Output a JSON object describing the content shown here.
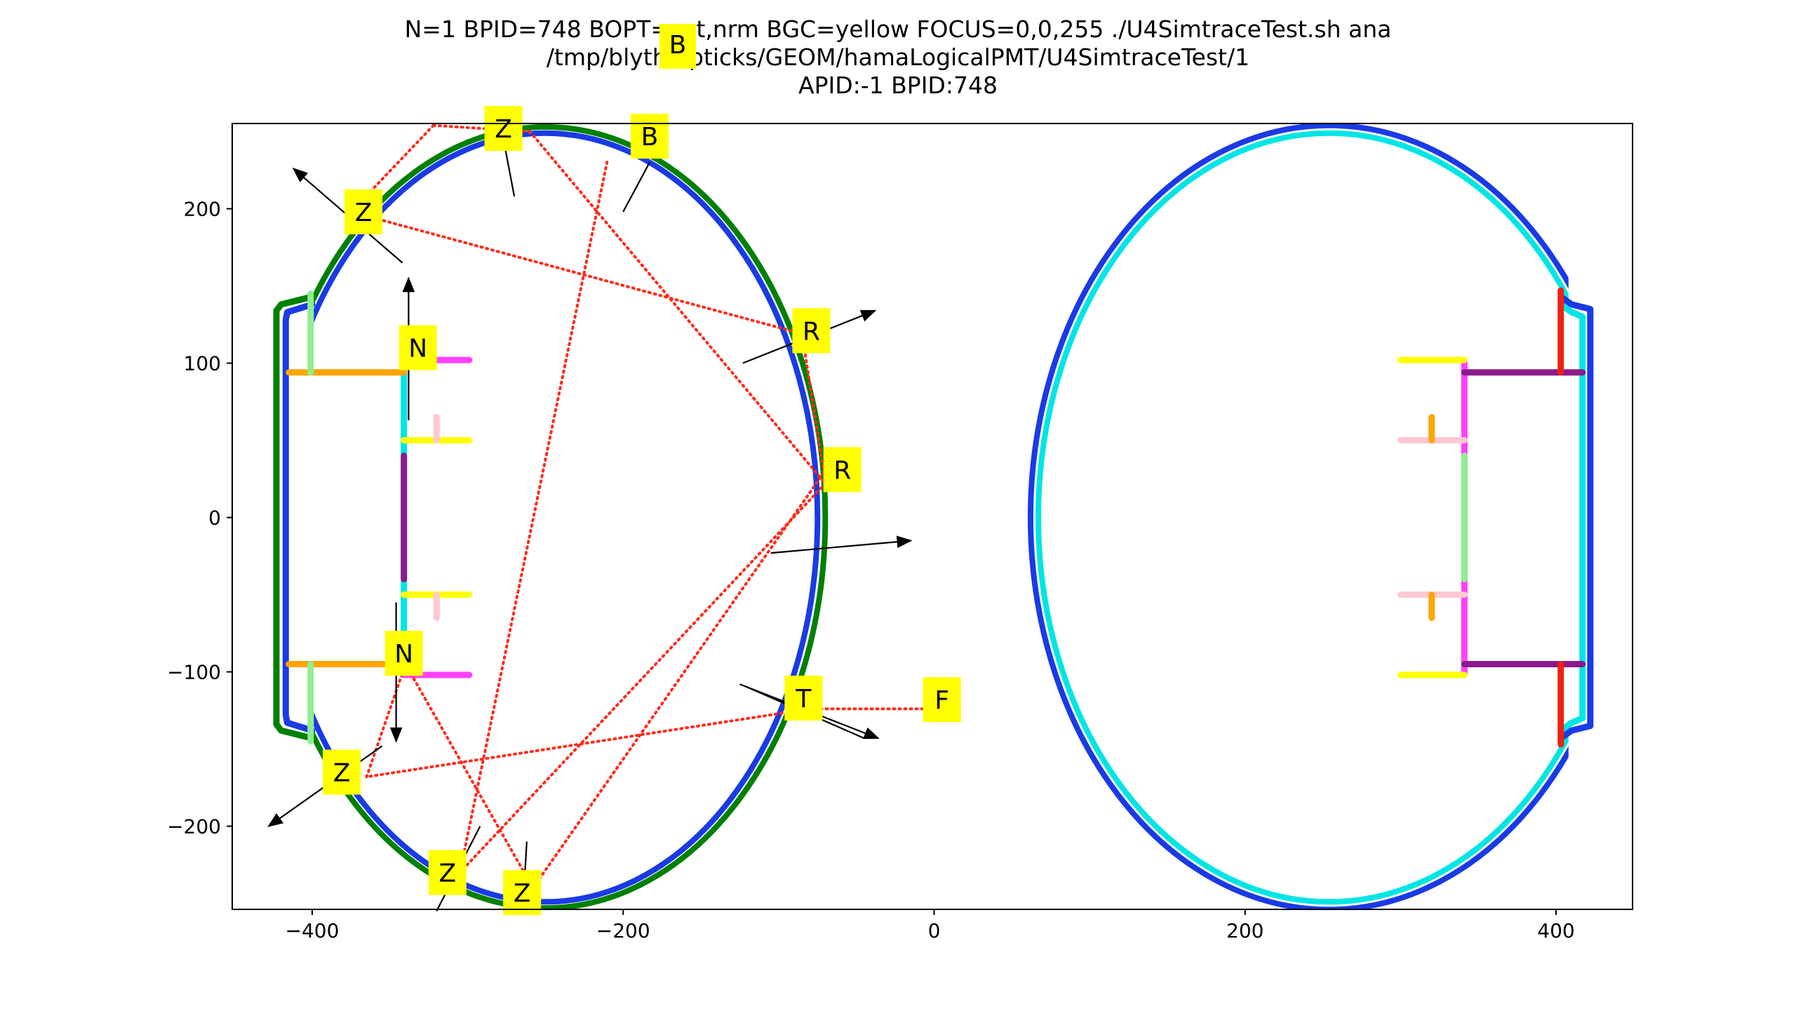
{
  "title": {
    "line1": "N=1 BPID=748 BOPT=ast,nrm BGC=yellow FOCUS=0,0,255 ./U4SimtraceTest.sh ana",
    "line2": "/tmp/blyth/opticks/GEOM/hamaLogicalPMT/U4SimtraceTest/1",
    "line3": "APID:-1 BPID:748",
    "overlay_label": "B"
  },
  "colors": {
    "green": "#008000",
    "blue": "#1a3ae6",
    "cyan": "#00e5e5",
    "magenta": "#ff40ff",
    "purple": "#8c1a8c",
    "orange": "#ffa500",
    "yellow": "#ffff00",
    "pink": "#ffc8d2",
    "lightgreen": "#90ee90",
    "red": "#ee2211",
    "ray": "#ff2a1a",
    "label_bg": "#ffff00",
    "arrow": "#000000"
  },
  "chart_data": {
    "type": "scatter",
    "xlim": [
      -460,
      455
    ],
    "ylim": [
      -255,
      255
    ],
    "grid": false,
    "xticks": [
      -400,
      -200,
      0,
      200,
      400
    ],
    "yticks": [
      -200,
      -100,
      0,
      100,
      200
    ],
    "xtick_labels": [
      "−400",
      "−200",
      "0",
      "200",
      "400"
    ],
    "ytick_labels": [
      "−200",
      "−100",
      "0",
      "100",
      "200"
    ],
    "geometry": {
      "ellipses": [
        {
          "name": "left-outer",
          "cx": -250,
          "cy": 0,
          "rx": 180,
          "ry": 253,
          "color": "green",
          "clip_xmin": -400
        },
        {
          "name": "left-inner",
          "cx": -250,
          "cy": 0,
          "rx": 175,
          "ry": 249,
          "color": "blue",
          "clip_xmin": -400
        },
        {
          "name": "right-outer",
          "cx": 254,
          "cy": 0,
          "rx": 192,
          "ry": 254,
          "color": "blue",
          "clip_xmax": 408
        },
        {
          "name": "right-inner",
          "cx": 254,
          "cy": 0,
          "rx": 187,
          "ry": 249,
          "color": "cyan",
          "clip_xmax": 408
        }
      ],
      "polylines": [
        {
          "name": "left-neck-outer",
          "color": "green",
          "points": [
            [
              -400,
              143
            ],
            [
              -420,
              138
            ],
            [
              -423,
              134
            ],
            [
              -423,
              -134
            ],
            [
              -420,
              -138
            ],
            [
              -400,
              -143
            ]
          ]
        },
        {
          "name": "left-neck-inner",
          "color": "blue",
          "points": [
            [
              -400,
              138
            ],
            [
              -416,
              133
            ],
            [
              -417,
              128
            ],
            [
              -417,
              -128
            ],
            [
              -416,
              -133
            ],
            [
              -400,
              -138
            ]
          ]
        },
        {
          "name": "right-neck-outer",
          "color": "blue",
          "points": [
            [
              403,
              143
            ],
            [
              410,
              138
            ],
            [
              422,
              135
            ],
            [
              422,
              -135
            ],
            [
              410,
              -138
            ],
            [
              403,
              -143
            ]
          ]
        },
        {
          "name": "right-neck-inner",
          "color": "cyan",
          "points": [
            [
              403,
              138
            ],
            [
              410,
              133
            ],
            [
              417,
              130
            ],
            [
              417,
              -130
            ],
            [
              410,
              -133
            ],
            [
              403,
              -138
            ]
          ]
        },
        {
          "name": "left-div-cyan",
          "color": "cyan",
          "points": [
            [
              -341,
              102
            ],
            [
              -341,
              -102
            ]
          ]
        },
        {
          "name": "left-div-purple",
          "color": "purple",
          "points": [
            [
              -341,
              40
            ],
            [
              -341,
              -40
            ]
          ]
        },
        {
          "name": "left-upper-mag",
          "color": "magenta",
          "points": [
            [
              -341,
              102
            ],
            [
              -299,
              102
            ]
          ]
        },
        {
          "name": "left-lower-mag",
          "color": "magenta",
          "points": [
            [
              -341,
              -102
            ],
            [
              -299,
              -102
            ]
          ]
        },
        {
          "name": "left-upper-yel",
          "color": "yellow",
          "points": [
            [
              -341,
              50
            ],
            [
              -299,
              50
            ]
          ]
        },
        {
          "name": "left-lower-yel",
          "color": "yellow",
          "points": [
            [
              -341,
              -50
            ],
            [
              -299,
              -50
            ]
          ]
        },
        {
          "name": "left-upper-pink",
          "color": "pink",
          "points": [
            [
              -320,
              65
            ],
            [
              -320,
              50
            ]
          ]
        },
        {
          "name": "left-lower-pink",
          "color": "pink",
          "points": [
            [
              -320,
              -50
            ],
            [
              -320,
              -65
            ]
          ]
        },
        {
          "name": "left-upper-orange",
          "color": "orange",
          "points": [
            [
              -415,
              94
            ],
            [
              -341,
              94
            ]
          ]
        },
        {
          "name": "left-lower-orange",
          "color": "orange",
          "points": [
            [
              -415,
              -95
            ],
            [
              -341,
              -95
            ]
          ]
        },
        {
          "name": "left-upper-lg",
          "color": "lightgreen",
          "points": [
            [
              -401,
              145
            ],
            [
              -401,
              94
            ]
          ]
        },
        {
          "name": "left-lower-lg",
          "color": "lightgreen",
          "points": [
            [
              -401,
              -95
            ],
            [
              -401,
              -145
            ]
          ]
        },
        {
          "name": "right-div-mag",
          "color": "magenta",
          "points": [
            [
              341,
              102
            ],
            [
              341,
              -102
            ]
          ]
        },
        {
          "name": "right-div-lg",
          "color": "lightgreen",
          "points": [
            [
              341,
              40
            ],
            [
              341,
              -40
            ]
          ]
        },
        {
          "name": "right-upper-yel",
          "color": "yellow",
          "points": [
            [
              300,
              102
            ],
            [
              341,
              102
            ]
          ]
        },
        {
          "name": "right-lower-yel",
          "color": "yellow",
          "points": [
            [
              300,
              -102
            ],
            [
              341,
              -102
            ]
          ]
        },
        {
          "name": "right-upper-pink",
          "color": "pink",
          "points": [
            [
              300,
              50
            ],
            [
              341,
              50
            ]
          ]
        },
        {
          "name": "right-lower-pink",
          "color": "pink",
          "points": [
            [
              300,
              -50
            ],
            [
              341,
              -50
            ]
          ]
        },
        {
          "name": "right-upper-orange",
          "color": "orange",
          "points": [
            [
              320,
              65
            ],
            [
              320,
              50
            ]
          ]
        },
        {
          "name": "right-lower-orange",
          "color": "orange",
          "points": [
            [
              320,
              -50
            ],
            [
              320,
              -65
            ]
          ]
        },
        {
          "name": "right-upper-purple",
          "color": "purple",
          "points": [
            [
              341,
              94
            ],
            [
              417,
              94
            ]
          ]
        },
        {
          "name": "right-lower-purple",
          "color": "purple",
          "points": [
            [
              341,
              -95
            ],
            [
              417,
              -95
            ]
          ]
        },
        {
          "name": "right-upper-red",
          "color": "red",
          "points": [
            [
              403,
              147
            ],
            [
              403,
              94
            ]
          ]
        },
        {
          "name": "right-lower-red",
          "color": "red",
          "points": [
            [
              403,
              -95
            ],
            [
              403,
              -147
            ]
          ]
        }
      ]
    },
    "ray_path": [
      [
        0,
        -124
      ],
      [
        -80,
        -124
      ],
      [
        -365,
        -168
      ],
      [
        -340,
        -95
      ],
      [
        -258,
        -240
      ],
      [
        -71,
        29
      ],
      [
        -85,
        119
      ],
      [
        -375,
        198
      ],
      [
        -322,
        254
      ],
      [
        -260,
        250
      ],
      [
        -70,
        22
      ],
      [
        -305,
        -230
      ],
      [
        -210,
        232
      ]
    ],
    "labels": [
      {
        "text": "F",
        "x": 5,
        "y": -118
      },
      {
        "text": "T",
        "x": -84,
        "y": -117
      },
      {
        "text": "Z",
        "x": -381,
        "y": -165
      },
      {
        "text": "N",
        "x": -341,
        "y": -88
      },
      {
        "text": "Z",
        "x": -265,
        "y": -243
      },
      {
        "text": "R",
        "x": -59,
        "y": 31
      },
      {
        "text": "R",
        "x": -79,
        "y": 121
      },
      {
        "text": "Z",
        "x": -367,
        "y": 198
      },
      {
        "text": "N",
        "x": -332,
        "y": 110
      },
      {
        "text": "Z",
        "x": -277,
        "y": 252
      },
      {
        "text": "Z",
        "x": -313,
        "y": -230
      },
      {
        "text": "B",
        "x": -183,
        "y": 247
      }
    ],
    "arrows": [
      {
        "x1": -125,
        "y1": -108,
        "x2": -36,
        "y2": -143,
        "head": true
      },
      {
        "x1": -120,
        "y1": -110,
        "x2": -45,
        "y2": -143,
        "head": false
      },
      {
        "x1": -355,
        "y1": -148,
        "x2": -428,
        "y2": -200,
        "head": true
      },
      {
        "x1": -346,
        "y1": -55,
        "x2": -346,
        "y2": -145,
        "head": true
      },
      {
        "x1": -262,
        "y1": -210,
        "x2": -264,
        "y2": -245,
        "head": false
      },
      {
        "x1": -105,
        "y1": -23,
        "x2": -15,
        "y2": -15,
        "head": true
      },
      {
        "x1": -123,
        "y1": 100,
        "x2": -38,
        "y2": 134,
        "head": true
      },
      {
        "x1": -342,
        "y1": 165,
        "x2": -412,
        "y2": 226,
        "head": true
      },
      {
        "x1": -338,
        "y1": 63,
        "x2": -338,
        "y2": 155,
        "head": true
      },
      {
        "x1": -270,
        "y1": 208,
        "x2": -277,
        "y2": 245,
        "head": false
      },
      {
        "x1": -292,
        "y1": -200,
        "x2": -320,
        "y2": -255,
        "head": false
      },
      {
        "x1": -200,
        "y1": 198,
        "x2": -183,
        "y2": 230,
        "head": false
      }
    ]
  }
}
